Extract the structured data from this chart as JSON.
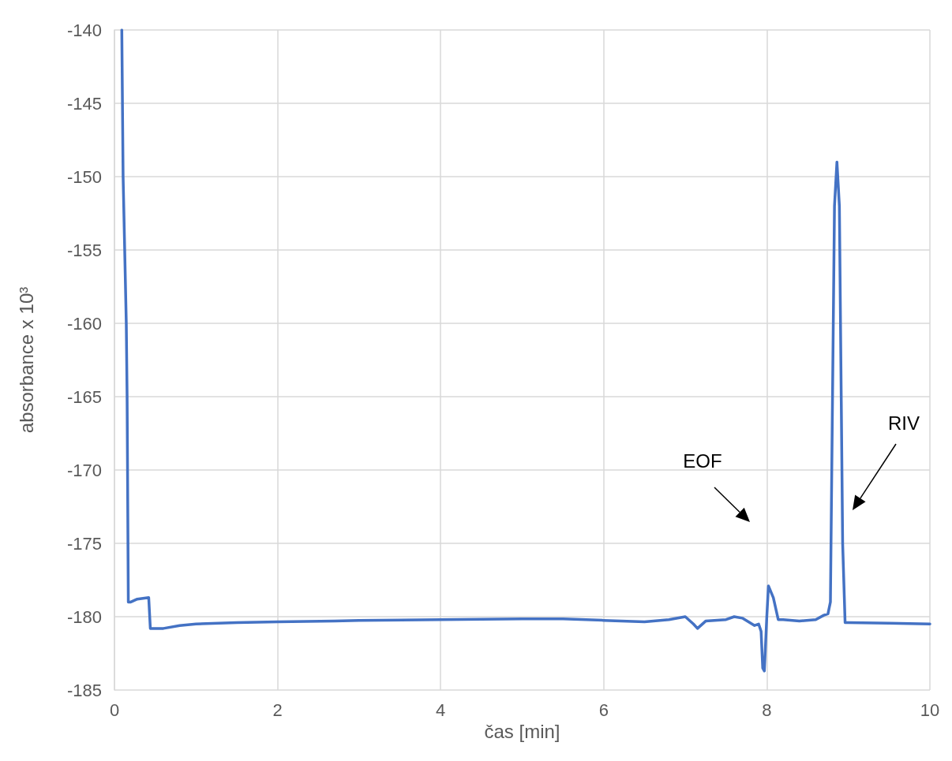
{
  "chart_data": {
    "type": "line",
    "xlabel": "čas [min]",
    "ylabel": "absorbance x 10³",
    "xlim": [
      0,
      10
    ],
    "xticks": [
      0,
      2,
      4,
      6,
      8,
      10
    ],
    "ylim": [
      -185,
      -140
    ],
    "yticks": [
      -185,
      -180,
      -175,
      -170,
      -165,
      -160,
      -155,
      -150,
      -145,
      -140
    ],
    "grid": true,
    "marker": "none",
    "line_style": "solid",
    "annotations": [
      "EOF",
      "RIV"
    ],
    "series": [
      {
        "color": "#4472c4",
        "x": [
          0.09,
          0.106,
          0.145,
          0.155,
          0.17,
          0.2,
          0.28,
          0.42,
          0.44,
          0.6,
          0.8,
          1.0,
          1.5,
          2.0,
          2.7,
          3,
          4,
          5,
          5.5,
          6,
          6.5,
          6.8,
          7.0,
          7.1,
          7.15,
          7.25,
          7.5,
          7.6,
          7.7,
          7.85,
          7.9,
          7.93,
          7.95,
          7.97,
          8.0,
          8.02,
          8.08,
          8.14,
          8.2,
          8.4,
          8.6,
          8.7,
          8.75,
          8.78,
          8.83,
          8.86,
          8.89,
          8.93,
          8.96,
          9.0,
          9.5,
          10
        ],
        "values": [
          -140,
          -150,
          -160,
          -165,
          -179,
          -179,
          -178.8,
          -178.7,
          -180.8,
          -180.8,
          -180.6,
          -180.5,
          -180.4,
          -180.35,
          -180.3,
          -180.25,
          -180.2,
          -180.15,
          -180.15,
          -180.25,
          -180.35,
          -180.2,
          -180.0,
          -180.5,
          -180.8,
          -180.3,
          -180.2,
          -180.0,
          -180.1,
          -180.6,
          -180.5,
          -181,
          -183.5,
          -183.7,
          -180,
          -177.9,
          -178.7,
          -180.2,
          -180.2,
          -180.3,
          -180.2,
          -179.9,
          -179.8,
          -179,
          -152,
          -149,
          -152,
          -175,
          -180.4,
          -180.4,
          -180.45,
          -180.5
        ]
      }
    ]
  }
}
